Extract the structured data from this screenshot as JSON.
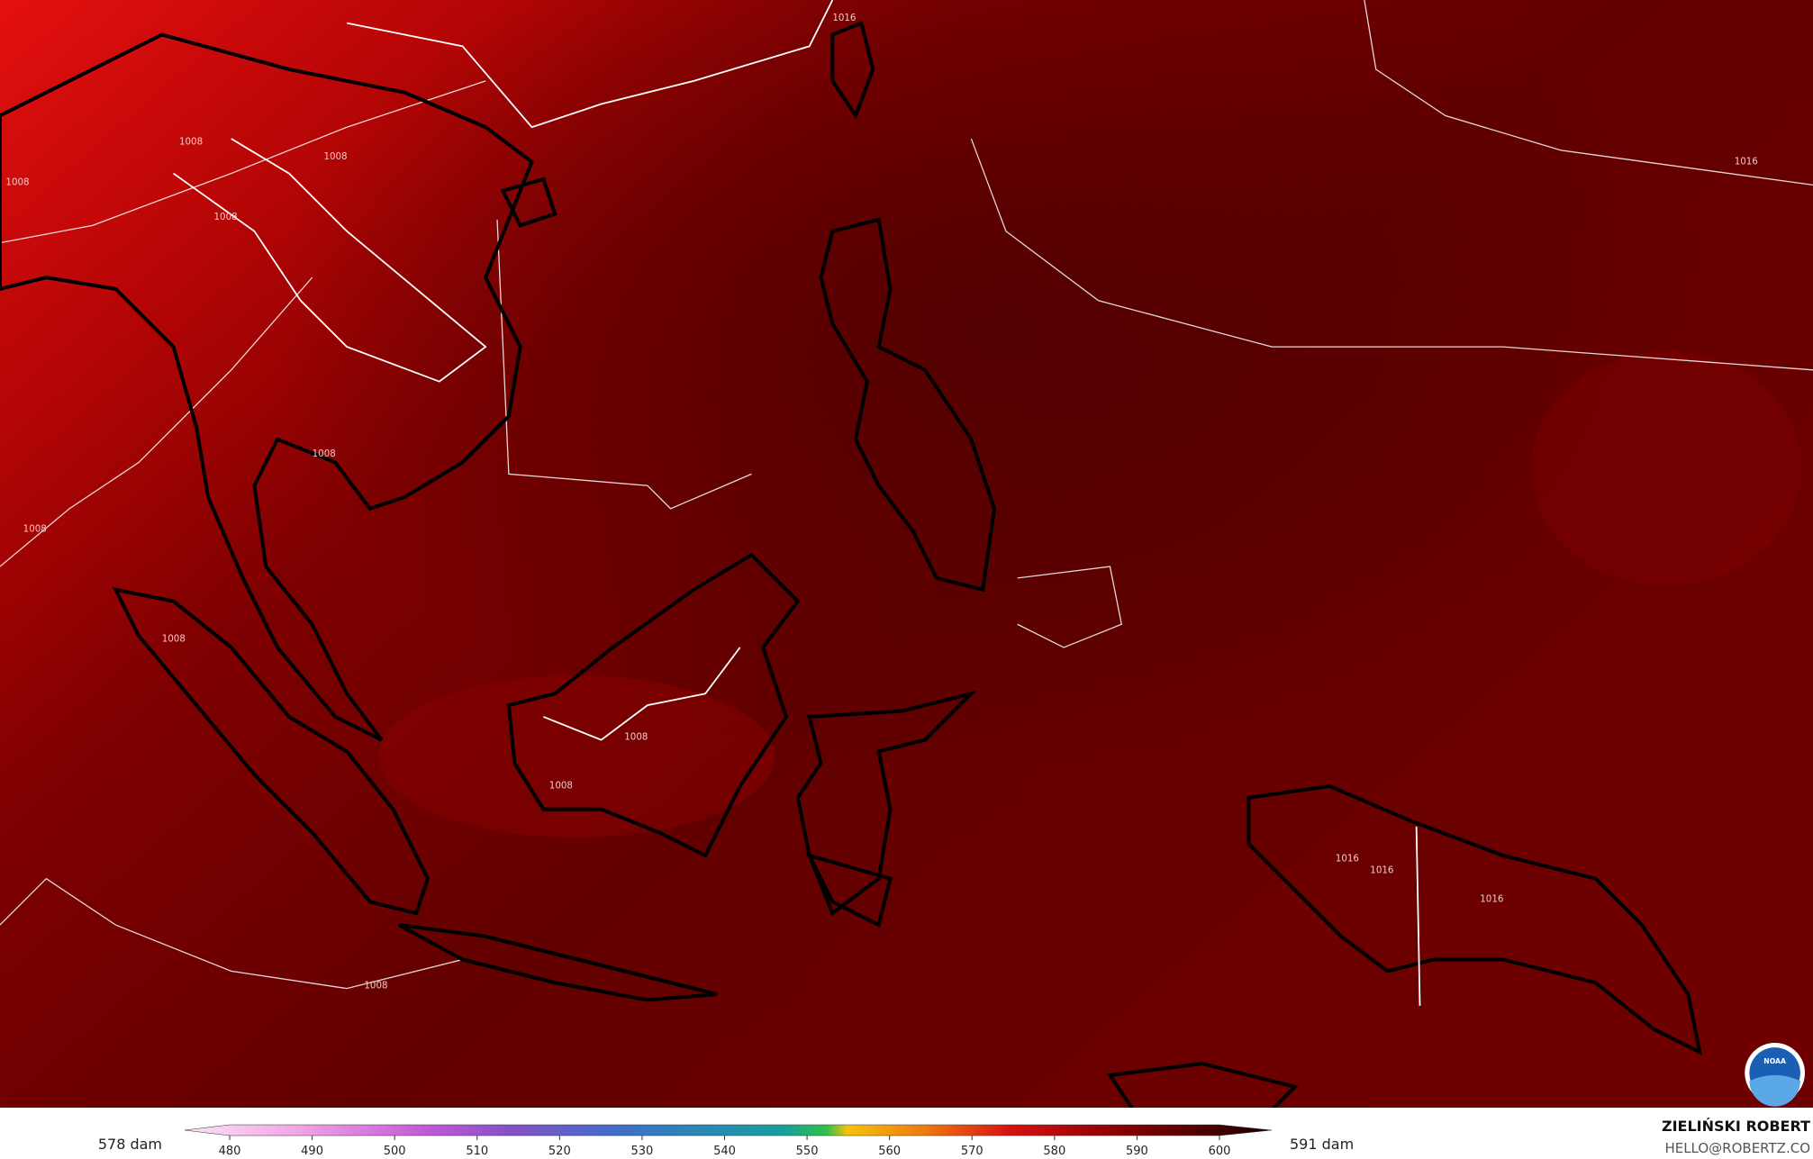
{
  "map": {
    "contour_labels": [
      "1008",
      "1008",
      "1008",
      "1008",
      "1008",
      "1008",
      "1008",
      "1008",
      "1008",
      "1008",
      "1016",
      "1016",
      "1016",
      "1016",
      "1016"
    ],
    "logo_text": "NOAA"
  },
  "colorbar": {
    "min_label": "578 dam",
    "max_label": "591 dam",
    "ticks": [
      480,
      490,
      500,
      510,
      520,
      530,
      540,
      550,
      560,
      570,
      580,
      590,
      600
    ]
  },
  "credit": {
    "name": "ZIELIŃSKI ROBERT",
    "contact": "HELLO@ROBERTZ.CO"
  }
}
